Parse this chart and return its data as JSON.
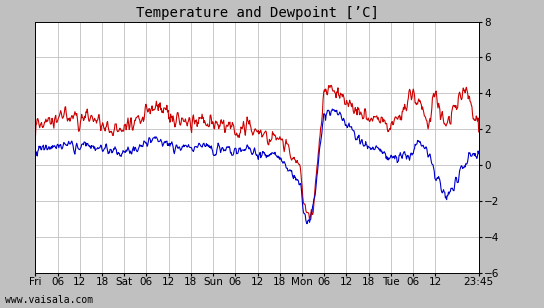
{
  "title": "Temperature and Dewpoint [’C]",
  "ylim": [
    -6,
    8
  ],
  "yticks": [
    -6,
    -4,
    -2,
    0,
    2,
    4,
    6,
    8
  ],
  "x_tick_labels": [
    "Fri",
    "06",
    "12",
    "18",
    "Sat",
    "06",
    "12",
    "18",
    "Sun",
    "06",
    "12",
    "18",
    "Mon",
    "06",
    "12",
    "18",
    "Tue",
    "06",
    "12",
    "23:45"
  ],
  "x_tick_positions": [
    0,
    6,
    12,
    18,
    24,
    30,
    36,
    42,
    48,
    54,
    60,
    66,
    72,
    78,
    84,
    90,
    96,
    102,
    108,
    119.75
  ],
  "xlim": [
    0,
    119.75
  ],
  "background_color": "#c0c0c0",
  "plot_bg_color": "#ffffff",
  "grid_color": "#c0c0c0",
  "temp_color": "#cc0000",
  "dewp_color": "#0000cc",
  "line_width": 0.8,
  "watermark": "www.vaisala.com",
  "title_fontsize": 10,
  "tick_fontsize": 7.5,
  "watermark_fontsize": 7
}
